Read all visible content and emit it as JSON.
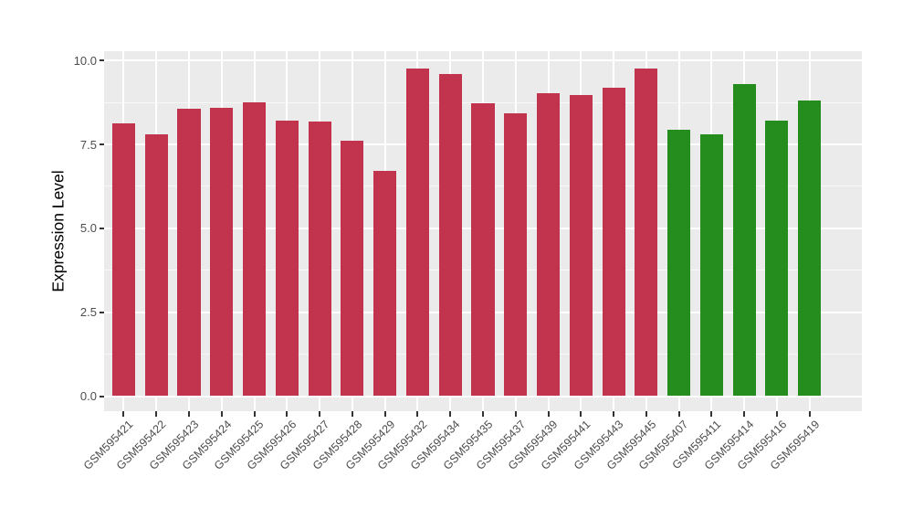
{
  "chart_data": {
    "type": "bar",
    "title": "",
    "xlabel": "",
    "ylabel": "Expression Level",
    "ylim": [
      -0.49,
      10.27
    ],
    "yticks": [
      0,
      2.5,
      5,
      7.5,
      10
    ],
    "ytick_labels": [
      "0.0",
      "2.5",
      "5.0",
      "7.5",
      "10.0"
    ],
    "yminor": [
      1.25,
      3.75,
      6.25,
      8.75
    ],
    "grid": true,
    "legend_position": "none",
    "categories": [
      "GSM595421",
      "GSM595422",
      "GSM595423",
      "GSM595424",
      "GSM595425",
      "GSM595426",
      "GSM595427",
      "GSM595428",
      "GSM595429",
      "GSM595432",
      "GSM595434",
      "GSM595435",
      "GSM595437",
      "GSM595439",
      "GSM595441",
      "GSM595443",
      "GSM595445",
      "GSM595407",
      "GSM595411",
      "GSM595414",
      "GSM595416",
      "GSM595419"
    ],
    "values": [
      8.12,
      7.8,
      8.56,
      8.6,
      8.76,
      8.21,
      8.19,
      7.62,
      6.7,
      9.76,
      9.59,
      8.72,
      8.42,
      9.03,
      8.97,
      9.2,
      9.76,
      7.94,
      7.79,
      9.29,
      8.2,
      8.8
    ],
    "groups": [
      "red",
      "red",
      "red",
      "red",
      "red",
      "red",
      "red",
      "red",
      "red",
      "red",
      "red",
      "red",
      "red",
      "red",
      "red",
      "red",
      "red",
      "green",
      "green",
      "green",
      "green",
      "green"
    ],
    "palette": {
      "red": "#C2334E",
      "green": "#258C1E"
    },
    "style": {
      "panel_bg": "#EBEBEB",
      "grid_color": "#FFFFFF",
      "tick_color": "#333333",
      "axis_text_color": "#4D4D4D",
      "axis_title_color": "#000000",
      "background": "#FFFFFF"
    }
  }
}
